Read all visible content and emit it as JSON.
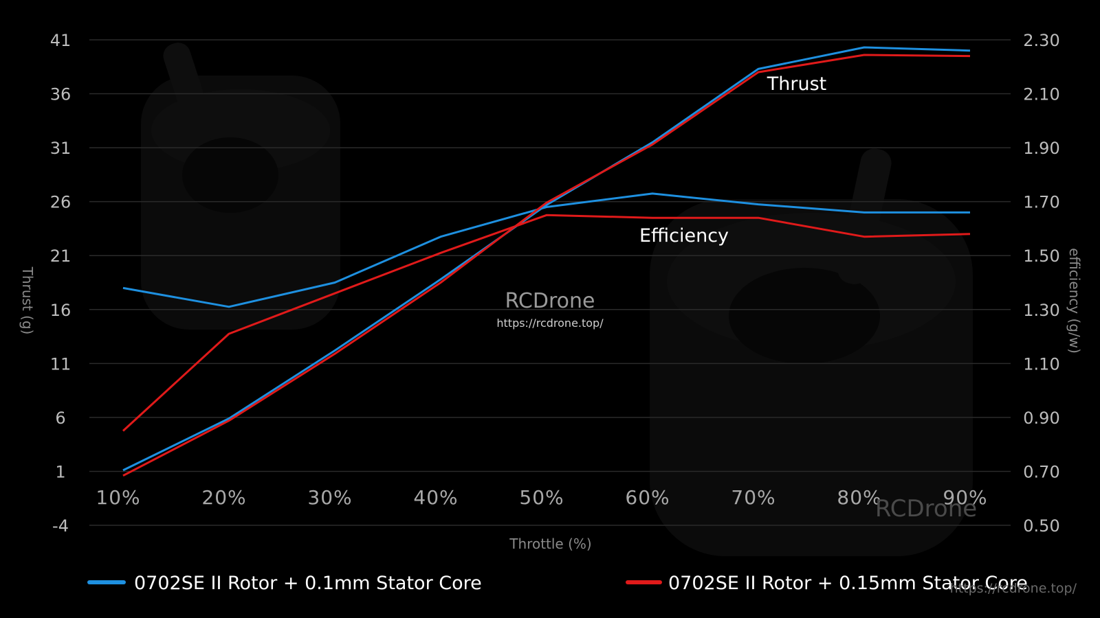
{
  "chart_data": {
    "type": "line",
    "xlabel": "Throttle (%)",
    "ylabel_left": "Thrust (g)",
    "ylabel_right": "efficiency (g/w)",
    "categories": [
      "10%",
      "20%",
      "30%",
      "40%",
      "50%",
      "60%",
      "70%",
      "80%",
      "90%"
    ],
    "y_left": {
      "ticks": [
        "41",
        "36",
        "31",
        "26",
        "21",
        "16",
        "11",
        "6",
        "1",
        "-4"
      ],
      "range": [
        -4,
        41
      ]
    },
    "y_right": {
      "ticks": [
        "2.30",
        "2.10",
        "1.90",
        "1.70",
        "1.50",
        "1.30",
        "1.10",
        "0.90",
        "0.70",
        "0.50"
      ],
      "range": [
        0.5,
        2.3
      ]
    },
    "grid": true,
    "legend_position": "bottom",
    "annotations": {
      "thrust": "Thrust",
      "efficiency": "Efficiency"
    },
    "series": [
      {
        "name": "0702SE II Rotor + 0.1mm Stator Core",
        "color": "#1e90e0",
        "thrust": [
          1.1,
          5.9,
          12.2,
          18.8,
          25.7,
          31.5,
          38.3,
          40.3,
          40.0
        ],
        "efficiency": [
          1.38,
          1.31,
          1.4,
          1.57,
          1.68,
          1.73,
          1.69,
          1.66,
          1.66
        ]
      },
      {
        "name": "0702SE II Rotor + 0.15mm Stator Core",
        "color": "#e01a1a",
        "thrust": [
          0.6,
          5.7,
          11.9,
          18.5,
          25.9,
          31.3,
          38.0,
          39.6,
          39.5
        ],
        "efficiency": [
          0.85,
          1.21,
          1.36,
          1.51,
          1.65,
          1.64,
          1.64,
          1.57,
          1.58
        ]
      }
    ]
  },
  "watermark": {
    "brand": "RCDrone",
    "url": "https://rcdrone.top/"
  }
}
